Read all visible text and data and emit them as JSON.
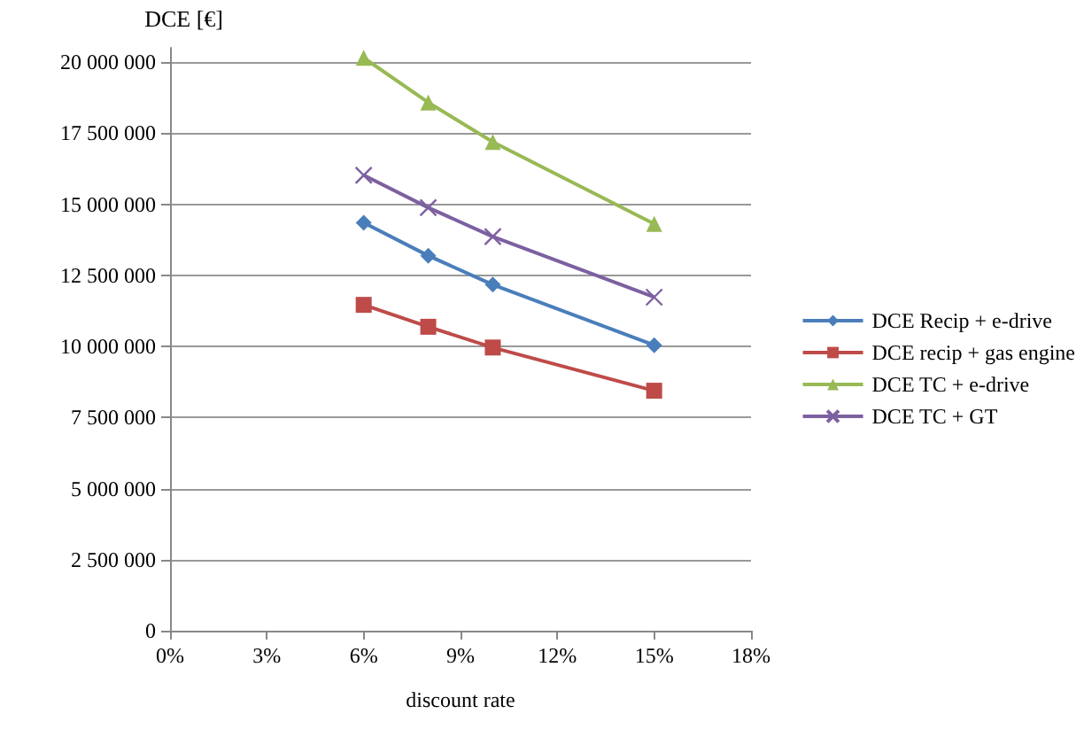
{
  "chart_data": {
    "type": "line",
    "ylabel": "DCE [€]",
    "xlabel": "discount rate",
    "x": [
      6,
      8,
      10,
      15
    ],
    "series": [
      {
        "name": "DCE Recip + e-drive",
        "color": "#4a7ebb",
        "marker": "diamond",
        "values": [
          14350000,
          13190000,
          12170000,
          10040000
        ]
      },
      {
        "name": "DCE recip + gas engine",
        "color": "#be4b48",
        "marker": "square",
        "values": [
          11460000,
          10690000,
          9960000,
          8440000
        ]
      },
      {
        "name": "DCE TC + e-drive",
        "color": "#98b954",
        "marker": "triangle",
        "values": [
          20150000,
          18580000,
          17190000,
          14310000
        ]
      },
      {
        "name": "DCE TC + GT",
        "color": "#7d60a0",
        "marker": "cross",
        "values": [
          16020000,
          14880000,
          13860000,
          11730000
        ]
      }
    ],
    "xlim": [
      0,
      18
    ],
    "xticks": [
      {
        "value": 0,
        "label": "0%"
      },
      {
        "value": 3,
        "label": "3%"
      },
      {
        "value": 6,
        "label": "6%"
      },
      {
        "value": 9,
        "label": "9%"
      },
      {
        "value": 12,
        "label": "12%"
      },
      {
        "value": 15,
        "label": "15%"
      },
      {
        "value": 18,
        "label": "18%"
      }
    ],
    "ylim": [
      0,
      20500000
    ],
    "yticks": [
      {
        "value": 0,
        "label": "0"
      },
      {
        "value": 2500000,
        "label": "2 500 000"
      },
      {
        "value": 5000000,
        "label": "5 000 000"
      },
      {
        "value": 7500000,
        "label": "7 500 000"
      },
      {
        "value": 10000000,
        "label": "10 000 000"
      },
      {
        "value": 12500000,
        "label": "12 500 000"
      },
      {
        "value": 15000000,
        "label": "15 000 000"
      },
      {
        "value": 17500000,
        "label": "17 500 000"
      },
      {
        "value": 20000000,
        "label": "20 000 000"
      }
    ],
    "grid": "y",
    "legend": "right",
    "line_style": "solid"
  }
}
